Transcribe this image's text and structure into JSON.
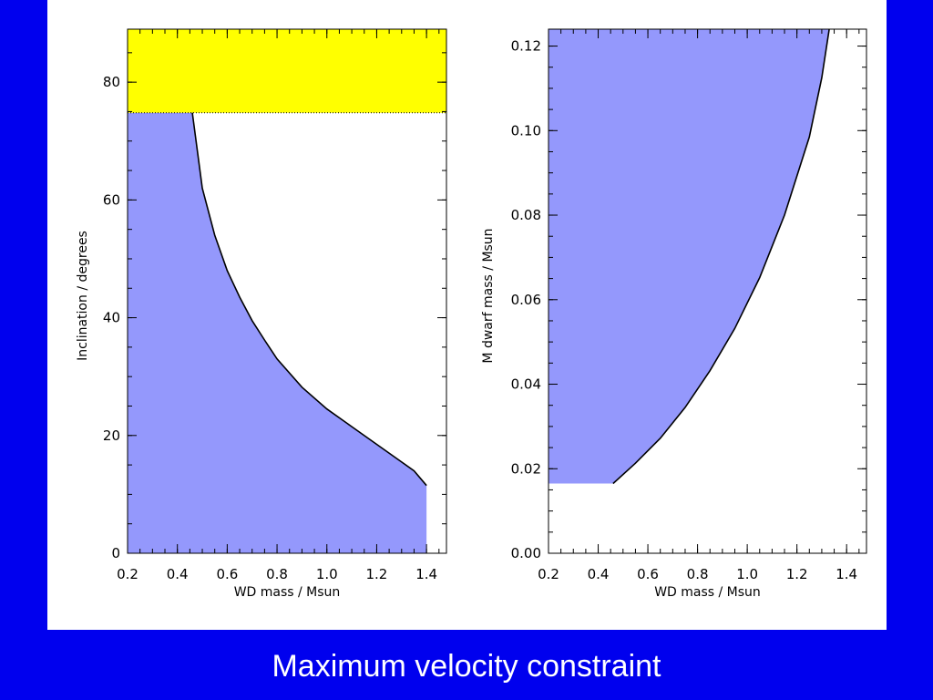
{
  "slide": {
    "title": "Maximum velocity constraint",
    "background_color": "#0000ee",
    "panel_color": "#ffffff"
  },
  "chart_data": [
    {
      "type": "area",
      "xlabel": "WD mass / Msun",
      "ylabel": "Inclination / degrees",
      "xlim": [
        0.2,
        1.48
      ],
      "ylim": [
        0,
        89
      ],
      "xticks": [
        0.2,
        0.4,
        0.6,
        0.8,
        1.0,
        1.2,
        1.4
      ],
      "xtick_labels": [
        "0.2",
        "0.4",
        "0.6",
        "0.8",
        "1.0",
        "1.2",
        "1.4"
      ],
      "yticks": [
        0,
        20,
        40,
        60,
        80
      ],
      "ytick_labels": [
        "0",
        "20",
        "40",
        "60",
        "80"
      ],
      "grid": false,
      "allowed_color": "#9498fc",
      "excluded_color": "#ffff00",
      "excluded_band": {
        "y_from": 74.8,
        "y_to": 89
      },
      "boundary": {
        "x": [
          0.46,
          0.5,
          0.55,
          0.6,
          0.65,
          0.7,
          0.75,
          0.8,
          0.9,
          1.0,
          1.1,
          1.2,
          1.3,
          1.35,
          1.4
        ],
        "y": [
          74.8,
          62.0,
          54.0,
          48.0,
          43.5,
          39.5,
          36.2,
          33.0,
          28.2,
          24.5,
          21.5,
          18.5,
          15.5,
          14.0,
          11.5
        ]
      },
      "allowed_region": {
        "x_from": 0.2,
        "x_to": 1.4,
        "y_from": 0,
        "y_to": 74.8
      }
    },
    {
      "type": "area",
      "xlabel": "WD mass / Msun",
      "ylabel": "M dwarf mass / Msun",
      "xlim": [
        0.2,
        1.48
      ],
      "ylim": [
        0,
        0.124
      ],
      "xticks": [
        0.2,
        0.4,
        0.6,
        0.8,
        1.0,
        1.2,
        1.4
      ],
      "xtick_labels": [
        "0.2",
        "0.4",
        "0.6",
        "0.8",
        "1.0",
        "1.2",
        "1.4"
      ],
      "yticks": [
        0,
        0.02,
        0.04,
        0.06,
        0.08,
        0.1,
        0.12
      ],
      "ytick_labels": [
        "0.00",
        "0.02",
        "0.04",
        "0.06",
        "0.08",
        "0.10",
        "0.12"
      ],
      "grid": false,
      "allowed_color": "#9498fc",
      "boundary": {
        "x": [
          0.46,
          0.55,
          0.65,
          0.75,
          0.85,
          0.95,
          1.05,
          1.15,
          1.25,
          1.3,
          1.33
        ],
        "y": [
          0.0165,
          0.0213,
          0.0272,
          0.0345,
          0.0432,
          0.0532,
          0.0652,
          0.08,
          0.0985,
          0.1125,
          0.124
        ]
      },
      "allowed_region": {
        "x_from": 0.2,
        "y_from": 0.0165,
        "y_to": 0.124
      }
    }
  ]
}
